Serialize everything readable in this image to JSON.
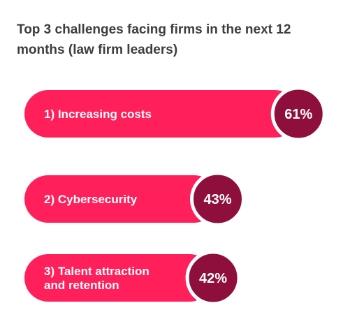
{
  "chart_data": {
    "type": "bar",
    "orientation": "horizontal",
    "title": "Top 3 challenges facing firms in the next 12 months (law firm leaders)",
    "categories": [
      "1) Increasing costs",
      "2) Cybersecurity",
      "3) Talent attraction and retention"
    ],
    "values": [
      61,
      43,
      42
    ],
    "value_labels": [
      "61%",
      "43%",
      "42%"
    ],
    "unit": "%",
    "xlim": [
      0,
      100
    ],
    "grid": false,
    "legend": "none"
  },
  "colors": {
    "bar": "#ff1f5a",
    "value_circle": "#8e0e3c",
    "title": "#3d3d3d",
    "background": "#ffffff"
  }
}
